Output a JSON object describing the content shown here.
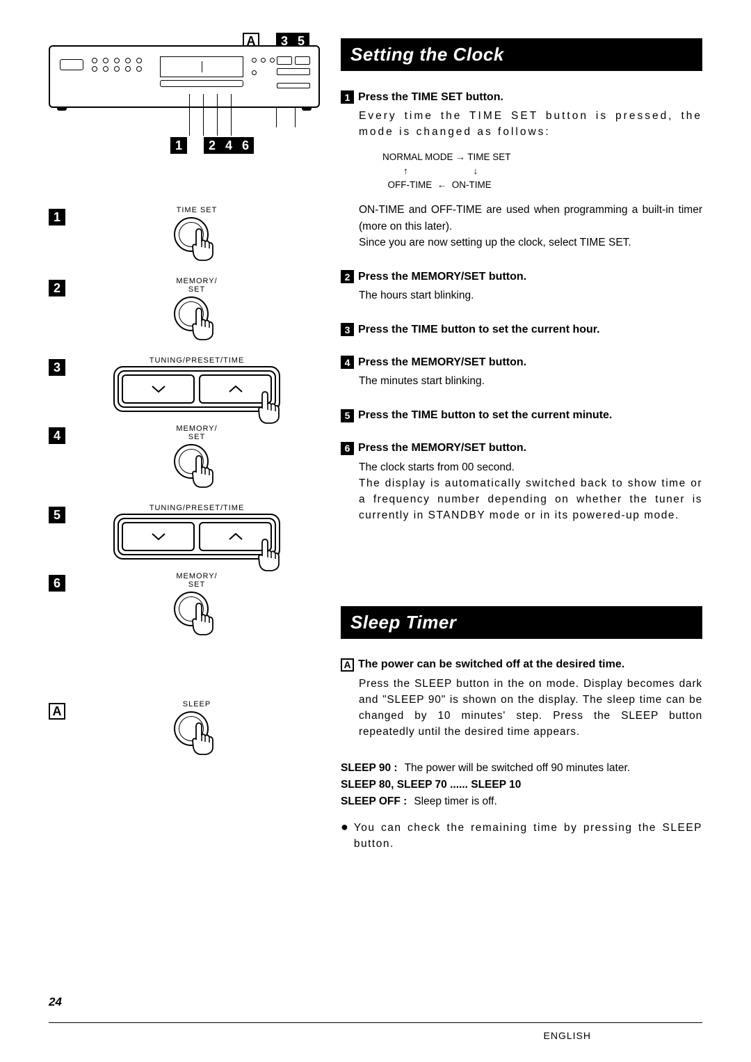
{
  "colors": {
    "ink": "#000000",
    "paper": "#ffffff"
  },
  "device_callouts": {
    "top_letter": "A",
    "top_nums": [
      "3",
      "5"
    ],
    "bottom_nums": [
      "1",
      "2",
      "4",
      "6"
    ]
  },
  "left_steps": [
    {
      "num": "1",
      "label": "TIME SET",
      "kind": "press"
    },
    {
      "num": "2",
      "label": "MEMORY/\nSET",
      "kind": "press"
    },
    {
      "num": "3",
      "label": "TUNING/PRESET/TIME",
      "kind": "rocker"
    },
    {
      "num": "4",
      "label": "MEMORY/\nSET",
      "kind": "press"
    },
    {
      "num": "5",
      "label": "TUNING/PRESET/TIME",
      "kind": "rocker"
    },
    {
      "num": "6",
      "label": "MEMORY/\nSET",
      "kind": "press"
    }
  ],
  "left_sleep": {
    "letter": "A",
    "label": "SLEEP",
    "kind": "press"
  },
  "sections": {
    "clock": {
      "title": "Setting the Clock",
      "steps": {
        "s1": {
          "num": "1",
          "head": "Press the TIME SET button.",
          "body1": "Every time the TIME SET button is pressed, the mode is changed as follows:",
          "diagram": {
            "l1": "NORMAL MODE → TIME SET",
            "l2": "        ↑                         ↓",
            "l3": "  OFF-TIME  ←  ON-TIME"
          },
          "body2": "ON-TIME and OFF-TIME are used when programming a built-in timer (more on this later).",
          "body3": "Since you are now setting up the clock, select TIME SET."
        },
        "s2": {
          "num": "2",
          "head": "Press the MEMORY/SET button.",
          "body": "The hours start blinking."
        },
        "s3": {
          "num": "3",
          "head": "Press the TIME button to set the current hour."
        },
        "s4": {
          "num": "4",
          "head": "Press the MEMORY/SET button.",
          "body": "The minutes start blinking."
        },
        "s5": {
          "num": "5",
          "head": "Press the TIME button to set the current minute."
        },
        "s6": {
          "num": "6",
          "head": "Press the MEMORY/SET button.",
          "body1": "The clock starts from 00 second.",
          "body2": "The display is automatically switched back to show time or a frequency number depending on whether the tuner is currently in STANDBY mode or in its powered-up mode."
        }
      }
    },
    "sleep": {
      "title": "Sleep Timer",
      "step": {
        "letter": "A",
        "head": "The power can be switched off at the desired time.",
        "body": "Press the SLEEP button in the on mode. Display becomes dark and \"SLEEP 90\" is shown on the display. The sleep time can be changed by 10 minutes' step. Press the SLEEP button repeatedly until the desired time appears."
      },
      "listing": {
        "l1_label": "SLEEP 90 :",
        "l1_text": "The power will be switched off 90 minutes later.",
        "l2": "SLEEP 80,  SLEEP 70 ...... SLEEP 10",
        "l3_label": "SLEEP OFF :",
        "l3_text": "Sleep timer is off."
      },
      "bullet": "You can check the remaining time by pressing the SLEEP button."
    }
  },
  "footer": {
    "page": "24",
    "lang": "ENGLISH"
  }
}
